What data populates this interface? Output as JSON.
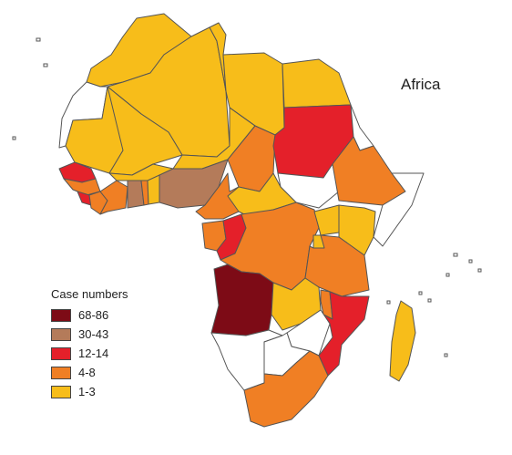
{
  "map": {
    "title": "Africa"
  },
  "legend": {
    "title": "Case numbers",
    "items": [
      {
        "label": "68-86",
        "color": "#7d0b16"
      },
      {
        "label": "30-43",
        "color": "#b47b5a"
      },
      {
        "label": "12-14",
        "color": "#e4202a"
      },
      {
        "label": "4-8",
        "color": "#f07f24"
      },
      {
        "label": "1-3",
        "color": "#f7bd1a"
      }
    ],
    "no_data_color": "#ffffff"
  },
  "regions": [
    {
      "name": "Morocco",
      "category": "1-3"
    },
    {
      "name": "Western Sahara",
      "category": "none"
    },
    {
      "name": "Algeria",
      "category": "1-3"
    },
    {
      "name": "Tunisia",
      "category": "1-3"
    },
    {
      "name": "Libya",
      "category": "1-3"
    },
    {
      "name": "Egypt",
      "category": "1-3"
    },
    {
      "name": "Mauritania",
      "category": "1-3"
    },
    {
      "name": "Mali",
      "category": "1-3"
    },
    {
      "name": "Niger",
      "category": "1-3"
    },
    {
      "name": "Chad",
      "category": "4-8"
    },
    {
      "name": "Sudan",
      "category": "12-14"
    },
    {
      "name": "South Sudan",
      "category": "none"
    },
    {
      "name": "Eritrea",
      "category": "none"
    },
    {
      "name": "Ethiopia",
      "category": "4-8"
    },
    {
      "name": "Somalia",
      "category": "none"
    },
    {
      "name": "Senegal",
      "category": "12-14"
    },
    {
      "name": "Guinea",
      "category": "4-8"
    },
    {
      "name": "Sierra Leone",
      "category": "12-14"
    },
    {
      "name": "Liberia",
      "category": "4-8"
    },
    {
      "name": "Ivory Coast",
      "category": "4-8"
    },
    {
      "name": "Burkina Faso",
      "category": "1-3"
    },
    {
      "name": "Ghana",
      "category": "30-43"
    },
    {
      "name": "Togo",
      "category": "4-8"
    },
    {
      "name": "Benin",
      "category": "1-3"
    },
    {
      "name": "Nigeria",
      "category": "30-43"
    },
    {
      "name": "Cameroon",
      "category": "4-8"
    },
    {
      "name": "Central African Republic",
      "category": "1-3"
    },
    {
      "name": "Gabon",
      "category": "4-8"
    },
    {
      "name": "Republic of the Congo",
      "category": "12-14"
    },
    {
      "name": "Democratic Republic of the Congo",
      "category": "4-8"
    },
    {
      "name": "Uganda",
      "category": "1-3"
    },
    {
      "name": "Kenya",
      "category": "1-3"
    },
    {
      "name": "Rwanda",
      "category": "1-3"
    },
    {
      "name": "Tanzania",
      "category": "4-8"
    },
    {
      "name": "Angola",
      "category": "68-86"
    },
    {
      "name": "Zambia",
      "category": "1-3"
    },
    {
      "name": "Malawi",
      "category": "4-8"
    },
    {
      "name": "Mozambique",
      "category": "12-14"
    },
    {
      "name": "Zimbabwe",
      "category": "none"
    },
    {
      "name": "Namibia",
      "category": "none"
    },
    {
      "name": "Botswana",
      "category": "none"
    },
    {
      "name": "South Africa",
      "category": "4-8"
    },
    {
      "name": "Madagascar",
      "category": "1-3"
    }
  ]
}
